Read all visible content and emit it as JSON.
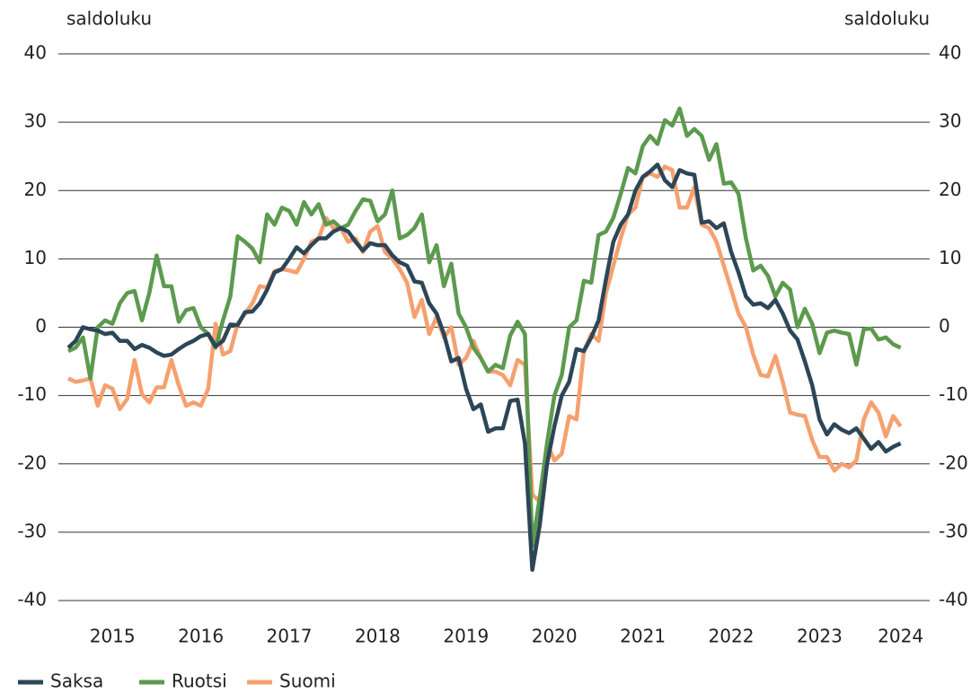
{
  "chart_data": {
    "type": "line",
    "y_label": "saldoluku",
    "y2_label": "saldoluku",
    "categories": [
      null,
      null,
      null,
      null,
      null,
      null,
      "2015",
      null,
      null,
      null,
      null,
      null,
      null,
      null,
      null,
      null,
      null,
      null,
      "2016",
      null,
      null,
      null,
      null,
      null,
      null,
      null,
      null,
      null,
      null,
      null,
      "2017",
      null,
      null,
      null,
      null,
      null,
      null,
      null,
      null,
      null,
      null,
      null,
      "2018",
      null,
      null,
      null,
      null,
      null,
      null,
      null,
      null,
      null,
      null,
      null,
      "2019",
      null,
      null,
      null,
      null,
      null,
      null,
      null,
      null,
      null,
      null,
      null,
      "2020",
      null,
      null,
      null,
      null,
      null,
      null,
      null,
      null,
      null,
      null,
      null,
      "2021",
      null,
      null,
      null,
      null,
      null,
      null,
      null,
      null,
      null,
      null,
      null,
      "2022",
      null,
      null,
      null,
      null,
      null,
      null,
      null,
      null,
      null,
      null,
      null,
      "2023",
      null,
      null,
      null,
      null,
      null,
      null,
      null,
      null,
      null,
      null,
      "2024"
    ],
    "series": [
      {
        "name": "Saksa",
        "color": "#2c4657",
        "values": [
          -3,
          -2,
          0,
          -0.3,
          -0.5,
          -1,
          -0.8,
          -2,
          -2,
          -3.2,
          -2.6,
          -3,
          -3.7,
          -4.2,
          -4,
          -3.2,
          -2.5,
          -2,
          -1.3,
          -1,
          -2.8,
          -2,
          0.4,
          0.3,
          2.2,
          2.3,
          3.5,
          5.5,
          8,
          8.5,
          10,
          11.7,
          10.8,
          12,
          13,
          13,
          14,
          14.5,
          14,
          12.5,
          11.2,
          12.3,
          12,
          12,
          10.5,
          9.5,
          9,
          6.7,
          6.5,
          3.5,
          2,
          -1,
          -5,
          -4.5,
          -9,
          -12,
          -11.3,
          -15.3,
          -14.8,
          -14.8,
          -10.8,
          -10.6,
          -17,
          -35.5,
          -29,
          -20,
          -14.5,
          -10,
          -8,
          -3.2,
          -3.5,
          -1.5,
          1,
          7,
          12.5,
          15,
          16.5,
          20,
          22,
          22.8,
          23.8,
          21.5,
          20.5,
          23,
          22.5,
          22.3,
          15.3,
          15.5,
          14.5,
          15.2,
          11,
          8,
          4.5,
          3.3,
          3.5,
          2.8,
          4,
          2,
          -0.5,
          -1.8,
          -5,
          -8.5,
          -13.5,
          -15.7,
          -14.2,
          -15,
          -15.5,
          -14.8,
          -16.3,
          -17.8,
          -16.8,
          -18.2,
          -17.5,
          -17
        ]
      },
      {
        "name": "Ruotsi",
        "color": "#5c9a4e",
        "values": [
          -3.5,
          -3,
          -1.5,
          -7.5,
          0,
          1,
          0.5,
          3.5,
          5,
          5.3,
          1,
          5,
          10.5,
          6,
          6,
          0.8,
          2.5,
          2.8,
          0,
          -1,
          -3,
          1,
          4.5,
          13.3,
          12.5,
          11.5,
          9.5,
          16.5,
          15,
          17.5,
          17,
          15,
          18.3,
          16.5,
          18,
          15,
          15.5,
          14.5,
          15,
          17,
          18.7,
          18.5,
          15.5,
          16.5,
          20,
          13,
          13.5,
          14.5,
          16.5,
          9.5,
          12,
          6,
          9.3,
          2,
          0,
          -3,
          -4.5,
          -6.5,
          -5.5,
          -6,
          -1.2,
          0.8,
          -1,
          -32,
          -25,
          -17,
          -10,
          -7,
          0,
          1,
          6.8,
          6.5,
          13.5,
          14,
          16,
          19.5,
          23.3,
          22.5,
          26.5,
          28,
          26.8,
          30.3,
          29.5,
          32,
          28,
          29,
          28,
          24.5,
          26.8,
          21,
          21.2,
          19.5,
          13,
          8.3,
          9,
          7.5,
          4.5,
          6.5,
          5.5,
          0,
          2.7,
          0.5,
          -3.8,
          -0.8,
          -0.5,
          -0.8,
          -1,
          -5.5,
          -0.3,
          -0.2,
          -1.8,
          -1.5,
          -2.5,
          -3
        ]
      },
      {
        "name": "Suomi",
        "color": "#f6a06f",
        "values": [
          -7.5,
          -8,
          -7.8,
          -7.5,
          -11.5,
          -8.5,
          -9,
          -12,
          -10.5,
          -4.8,
          -9.8,
          -11,
          -8.8,
          -8.8,
          -4.8,
          -8.5,
          -11.5,
          -11,
          -11.5,
          -9,
          0.5,
          -4,
          -3.5,
          0.5,
          2,
          3.5,
          6,
          5.8,
          8.2,
          8.5,
          8.3,
          8,
          10,
          12.5,
          13,
          16,
          14.5,
          14.5,
          12.5,
          13,
          11,
          14,
          14.8,
          11,
          10,
          8.5,
          6.5,
          1.5,
          4,
          -1,
          1.5,
          -1.5,
          0,
          -5.5,
          -4.5,
          -2,
          -4.5,
          -6.5,
          -6.5,
          -7,
          -8.5,
          -4.8,
          -5.5,
          -24.5,
          -25.5,
          -17,
          -19.5,
          -18.5,
          -13,
          -13.5,
          -3.5,
          -1,
          -2,
          5,
          9,
          13,
          16.5,
          17.5,
          22,
          22.5,
          22,
          23.5,
          23,
          17.5,
          17.5,
          20.5,
          15,
          14.5,
          12.5,
          9,
          5.5,
          2,
          0,
          -4,
          -7,
          -7.2,
          -4.2,
          -8,
          -12.5,
          -12.8,
          -13,
          -16.5,
          -19,
          -19,
          -21,
          -20,
          -20.5,
          -19.5,
          -13.5,
          -11,
          -12.5,
          -16,
          -13,
          -14.5
        ]
      }
    ],
    "ylim": [
      -40,
      40
    ],
    "yticks": [
      -40,
      -30,
      -20,
      -10,
      0,
      10,
      20,
      30,
      40
    ],
    "y2lim": [
      -40,
      40
    ],
    "y2ticks": [
      -40,
      -30,
      -20,
      -10,
      0,
      10,
      20,
      30,
      40
    ],
    "grid": true,
    "legend": "bottom-left"
  }
}
